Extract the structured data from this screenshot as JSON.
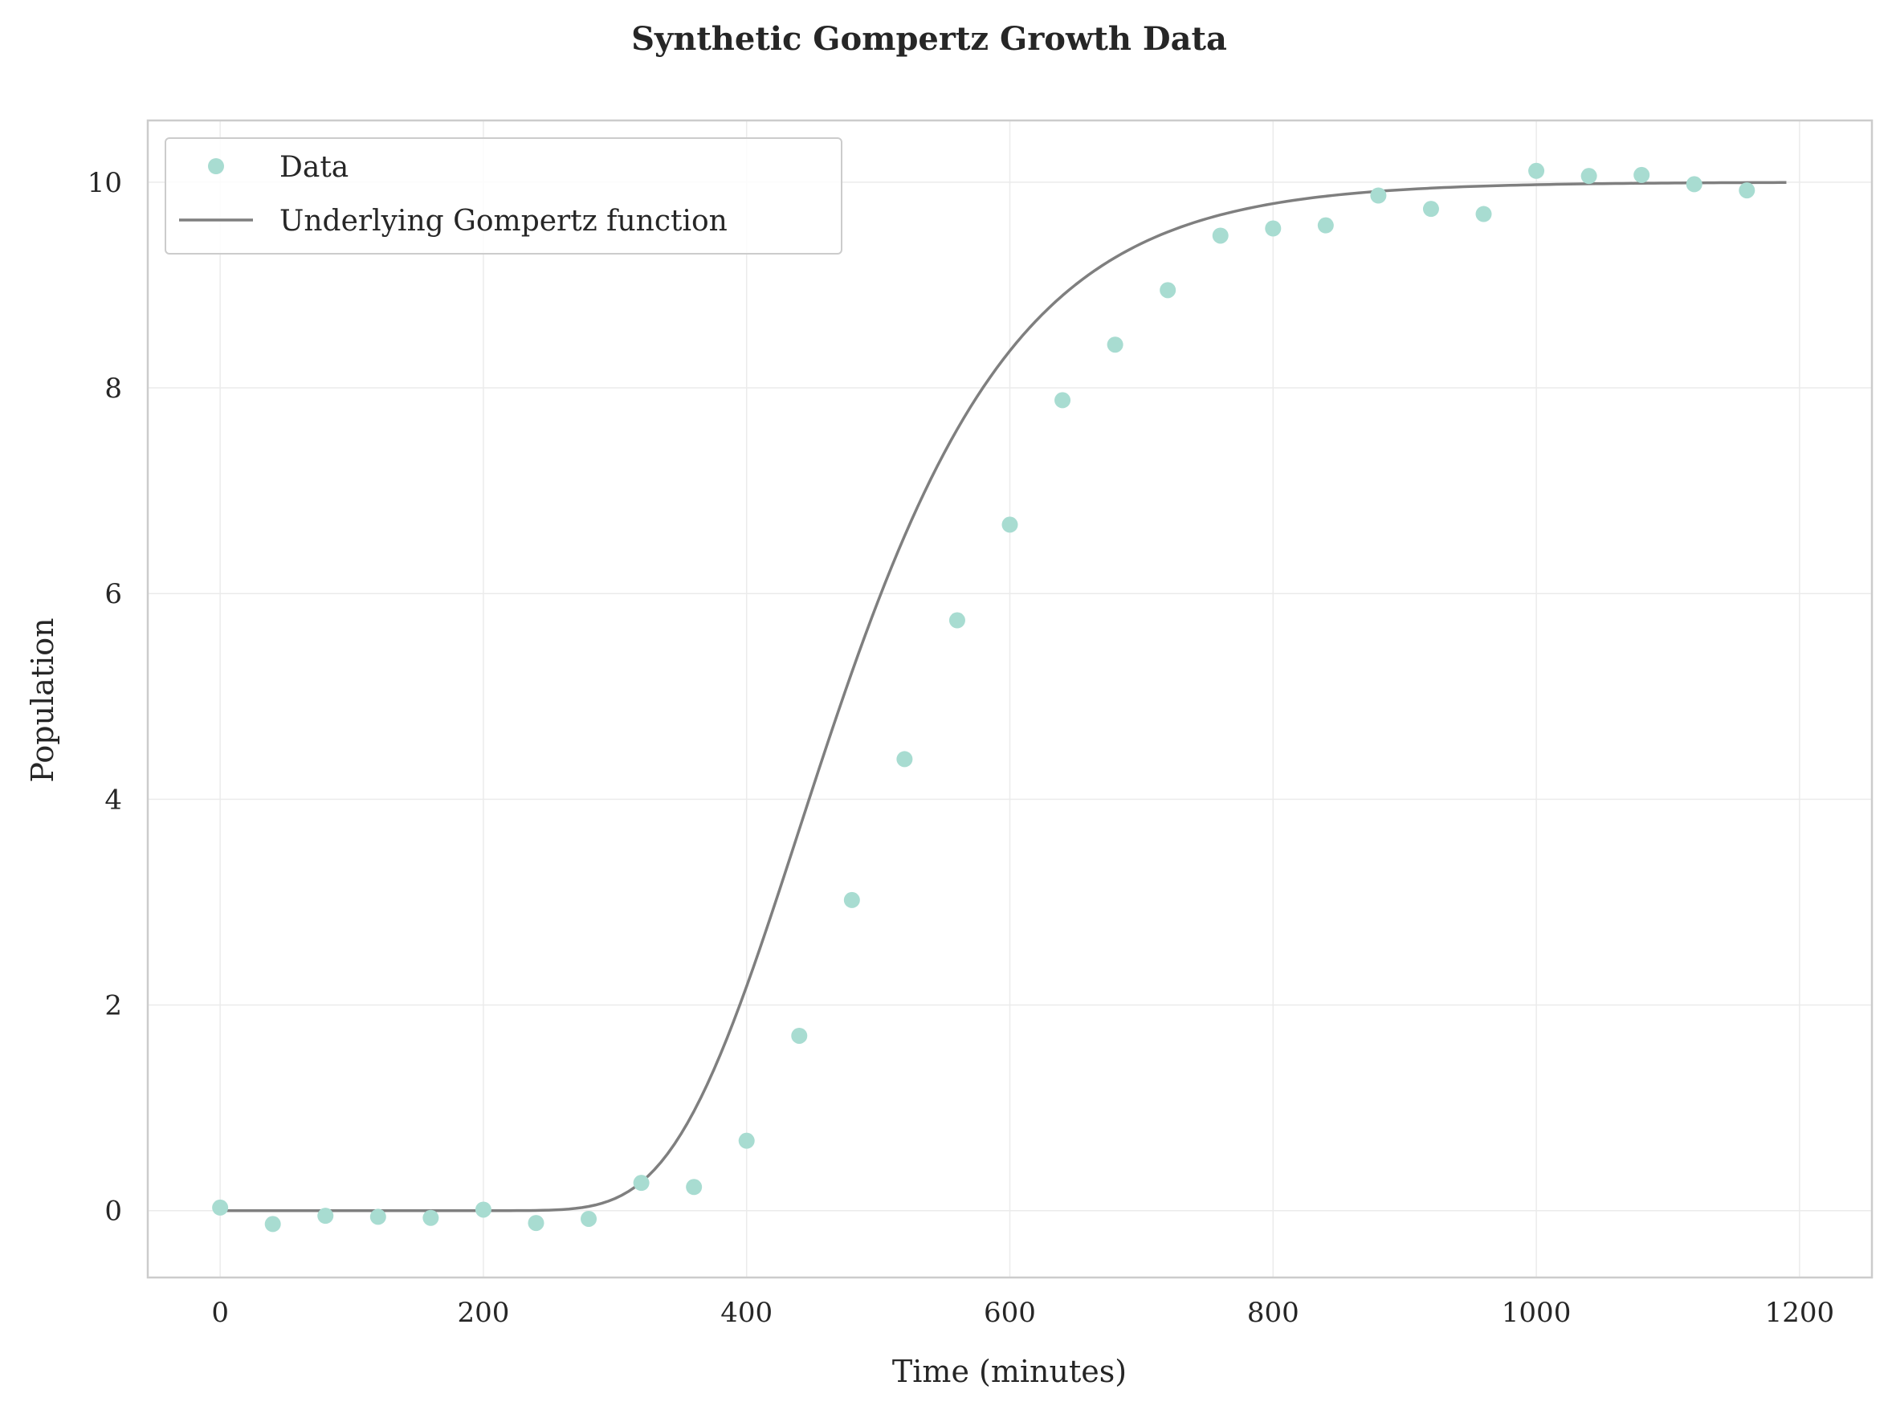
{
  "chart_data": {
    "type": "scatter",
    "title": "Synthetic Gompertz Growth Data",
    "xlabel": "Time (minutes)",
    "ylabel": "Population",
    "xlim": [
      -55,
      1255
    ],
    "ylim": [
      -0.65,
      10.6
    ],
    "xticks": [
      0,
      200,
      400,
      600,
      800,
      1000,
      1200
    ],
    "yticks": [
      0,
      2,
      4,
      6,
      8,
      10
    ],
    "grid": true,
    "legend_position": "upper-left",
    "legend": [
      {
        "label": "Data",
        "kind": "marker"
      },
      {
        "label": "Underlying Gompertz function",
        "kind": "line"
      }
    ],
    "series": [
      {
        "name": "Data",
        "kind": "scatter",
        "color": "#a8dcd1",
        "x": [
          0,
          40,
          80,
          120,
          160,
          200,
          240,
          280,
          320,
          360,
          400,
          440,
          480,
          520,
          560,
          600,
          640,
          680,
          720,
          760,
          800,
          840,
          880,
          920,
          960,
          1000,
          1040,
          1080,
          1120,
          1160
        ],
        "y": [
          0.03,
          -0.13,
          -0.05,
          -0.06,
          -0.07,
          0.01,
          -0.12,
          -0.08,
          0.27,
          0.23,
          0.68,
          1.7,
          3.02,
          4.39,
          5.74,
          6.67,
          7.88,
          8.42,
          8.95,
          9.48,
          9.55,
          9.58,
          9.87,
          9.74,
          9.69,
          10.11,
          10.06,
          10.07,
          9.98,
          9.92
        ]
      },
      {
        "name": "Underlying Gompertz function",
        "kind": "line",
        "color": "#7f7f7f",
        "model": {
          "form": "A*exp(-b*exp(-c*t))",
          "A": 10,
          "b": 110,
          "c": 0.0107
        },
        "x_range": [
          0,
          1190
        ]
      }
    ]
  }
}
